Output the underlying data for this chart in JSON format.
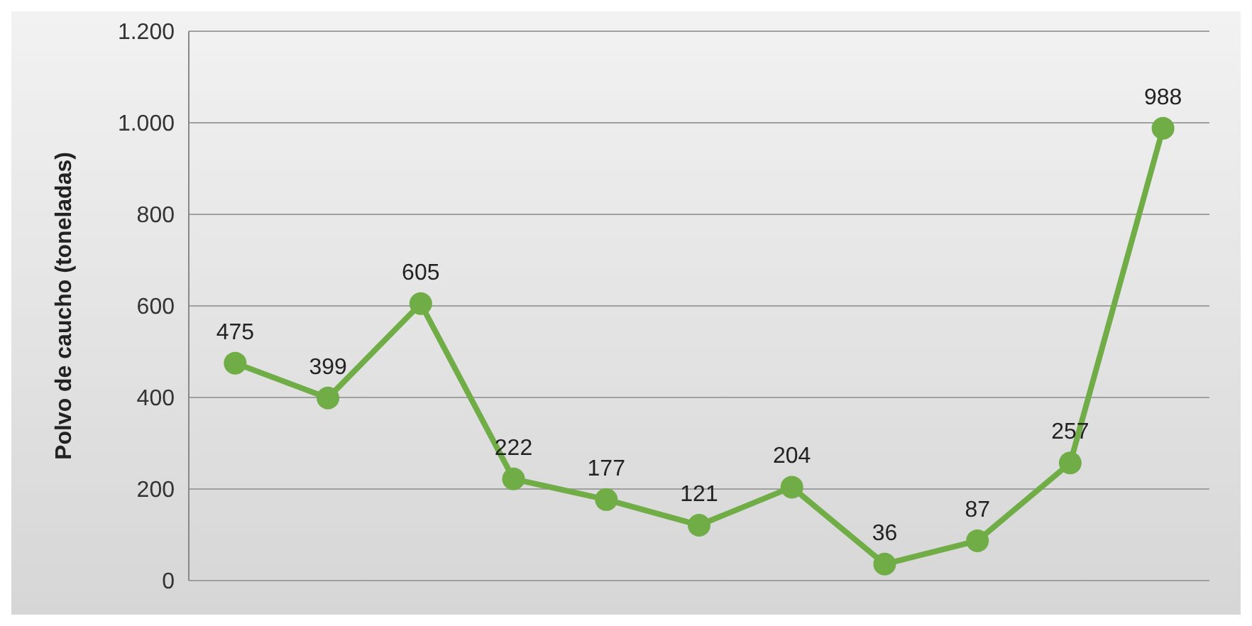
{
  "chart_data": {
    "type": "line",
    "ylabel": "Polvo de caucho (toneladas)",
    "categories": [
      null,
      null,
      null,
      null,
      null,
      null,
      null,
      null,
      null,
      null,
      null
    ],
    "series": [
      {
        "color": "#70ad47",
        "values": [
          475,
          399,
          605,
          222,
          177,
          121,
          204,
          36,
          87,
          257,
          988
        ]
      }
    ],
    "ylim": [
      0,
      1200
    ],
    "yticks": [
      {
        "value": 0,
        "label": "0"
      },
      {
        "value": 200,
        "label": "200"
      },
      {
        "value": 400,
        "label": "400"
      },
      {
        "value": 600,
        "label": "600"
      },
      {
        "value": 800,
        "label": "800"
      },
      {
        "value": 1000,
        "label": "1.000"
      },
      {
        "value": 1200,
        "label": "1.200"
      }
    ],
    "grid": "y",
    "marker": "circle",
    "line_style": "solid",
    "data_labels": true
  }
}
